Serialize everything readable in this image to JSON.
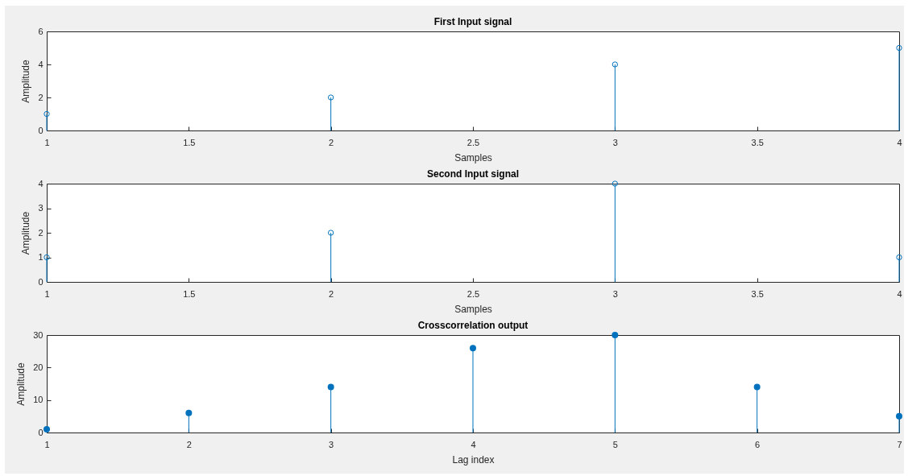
{
  "chart_data": [
    {
      "type": "lollipop",
      "title": "First Input signal",
      "xlabel": "Samples",
      "ylabel": "Amplitude",
      "x": [
        1,
        2,
        3,
        4
      ],
      "series": [
        {
          "color": "#0072bd",
          "values": [
            1,
            2,
            4,
            5
          ]
        }
      ],
      "xlim": [
        1,
        4
      ],
      "xticks": [
        1,
        1.5,
        2,
        2.5,
        3,
        3.5,
        4
      ],
      "ylim": [
        0,
        6
      ],
      "yticks": [
        0,
        2,
        4,
        6
      ],
      "marker": "circle"
    },
    {
      "type": "lollipop",
      "title": "Second Input signal",
      "xlabel": "Samples",
      "ylabel": "Amplitude",
      "x": [
        1,
        2,
        3,
        4
      ],
      "series": [
        {
          "color": "#0072bd",
          "values": [
            1,
            2,
            4,
            1
          ]
        }
      ],
      "xlim": [
        1,
        4
      ],
      "xticks": [
        1,
        1.5,
        2,
        2.5,
        3,
        3.5,
        4
      ],
      "ylim": [
        0,
        4
      ],
      "yticks": [
        0,
        1,
        2,
        3,
        4
      ],
      "marker": "circle"
    },
    {
      "type": "lollipop",
      "title": "Crosscorrelation output",
      "xlabel": "Lag index",
      "ylabel": "Amplitude",
      "x": [
        1,
        2,
        3,
        4,
        5,
        6,
        7
      ],
      "series": [
        {
          "color": "#0072bd",
          "values": [
            1,
            6,
            14,
            26,
            30,
            14,
            5
          ]
        }
      ],
      "xlim": [
        1,
        7
      ],
      "xticks": [
        1,
        2,
        3,
        4,
        5,
        6,
        7
      ],
      "ylim": [
        0,
        30
      ],
      "yticks": [
        0,
        10,
        20,
        30
      ],
      "marker": "circle"
    }
  ]
}
